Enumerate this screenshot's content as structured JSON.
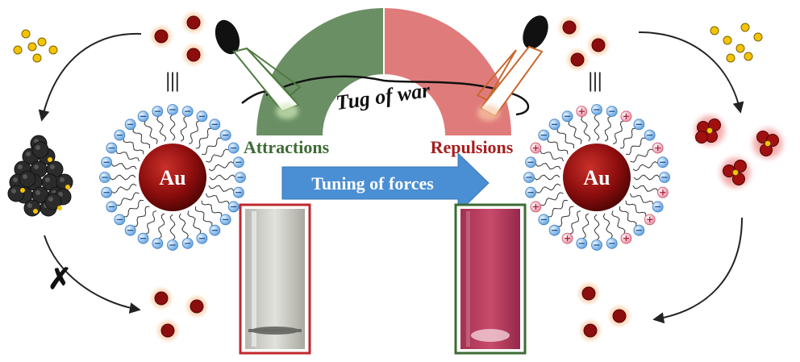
{
  "labels": {
    "tug_of_war": "Tug of war",
    "attractions": "Attractions",
    "repulsions": "Repulsions",
    "tuning": "Tuning of forces",
    "au_left": "Au",
    "au_right": "Au",
    "equiv_left": "|||",
    "equiv_right": "|||",
    "cross_mark": "✗"
  },
  "colors": {
    "attraction_green": "#6b8f64",
    "repulsion_red": "#e07b7b",
    "attraction_text": "#3d6b35",
    "repulsion_text": "#a51e1e",
    "au_core": "#8b0d0d",
    "ligand_blue": "#7fb4e8",
    "ligand_pink": "#f0a0b0",
    "arrow_blue": "#4a8fd4",
    "yellow_np": "#f5c400",
    "cuvette_left_border": "#c0282d",
    "cuvette_right_border": "#3d6b35"
  },
  "icons": [
    "yellow-nanoparticle-icon",
    "gold-nanoparticle-icon",
    "aggregate-icon",
    "hand-icon",
    "cuvette-icon",
    "cross-icon"
  ]
}
